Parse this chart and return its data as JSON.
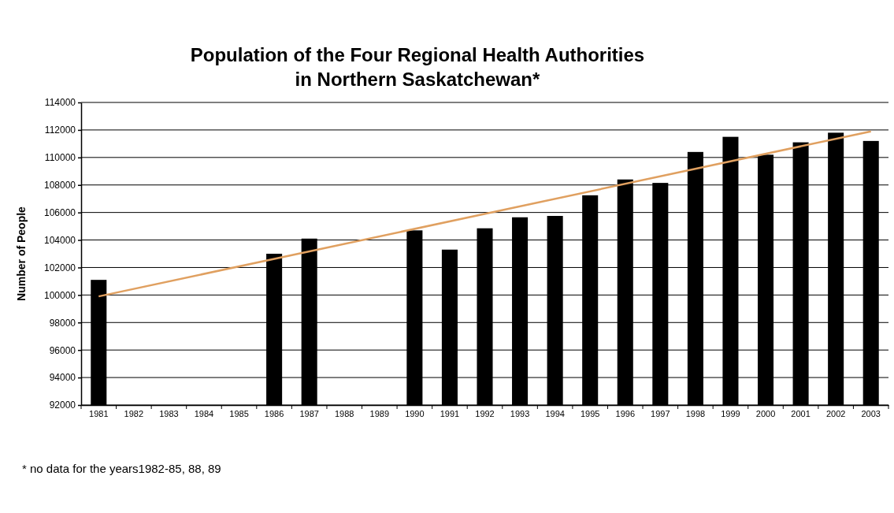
{
  "chart_data": {
    "type": "bar",
    "title": "Population of the Four Regional Health Authorities\nin Northern Saskatchewan*",
    "ylabel": "Number of People",
    "categories": [
      "1981",
      "1982",
      "1983",
      "1984",
      "1985",
      "1986",
      "1987",
      "1988",
      "1989",
      "1990",
      "1991",
      "1992",
      "1993",
      "1994",
      "1995",
      "1996",
      "1997",
      "1998",
      "1999",
      "2000",
      "2001",
      "2002",
      "2003"
    ],
    "series": [
      {
        "color": "#000000",
        "values": [
          101100,
          null,
          null,
          null,
          null,
          103000,
          104100,
          null,
          null,
          104700,
          103300,
          104850,
          105650,
          105750,
          107250,
          108400,
          108150,
          110400,
          111500,
          110200,
          111100,
          111800,
          111200
        ]
      },
      {
        "type": "line",
        "color": "#e0a060",
        "values": [
          99900,
          null,
          null,
          null,
          null,
          null,
          null,
          null,
          null,
          null,
          null,
          null,
          null,
          null,
          null,
          null,
          null,
          null,
          null,
          null,
          null,
          null,
          111900
        ]
      }
    ],
    "ylim": [
      92000,
      114000
    ],
    "yticks": [
      92000,
      94000,
      96000,
      98000,
      100000,
      102000,
      104000,
      106000,
      108000,
      110000,
      112000,
      114000
    ],
    "grid": "y",
    "annotations": [
      "* no data for the years1982-85, 88, 89"
    ]
  }
}
